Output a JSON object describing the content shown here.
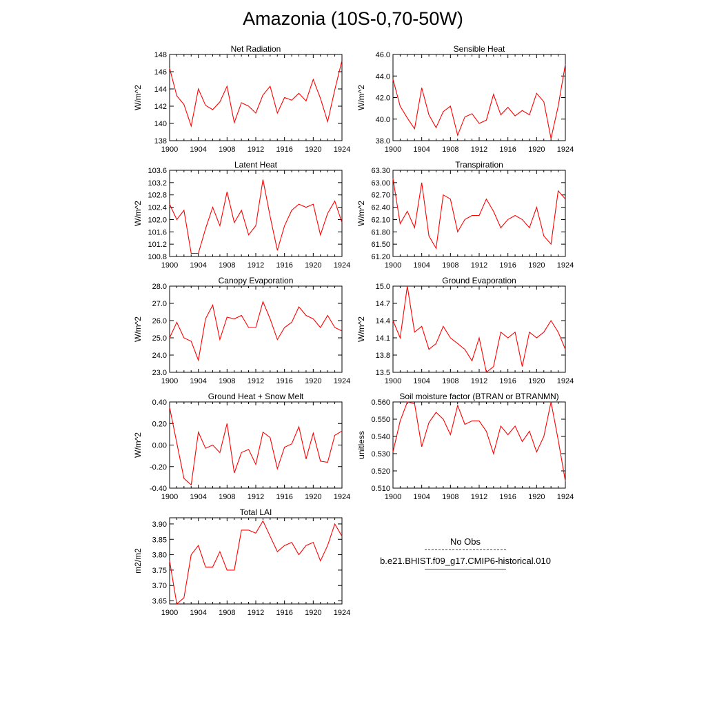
{
  "title": "Amazonia (10S-0,70-50W)",
  "line_color": "#ff0000",
  "legend": {
    "entries": [
      {
        "label": "No Obs",
        "style": "dashed",
        "color": "#3a3a9a"
      },
      {
        "label": "b.e21.BHIST.f09_g17.CMIP6-historical.010",
        "style": "solid",
        "color": "#ff0000"
      }
    ]
  },
  "chart_data": [
    {
      "type": "line",
      "title": "Net Radiation",
      "ylabel": "W/m^2",
      "xlim": [
        1900,
        1924
      ],
      "xticks": [
        1900,
        1904,
        1908,
        1912,
        1916,
        1920,
        1924
      ],
      "ylim": [
        138,
        148
      ],
      "yticks": [
        "138",
        "140",
        "142",
        "144",
        "146",
        "148"
      ],
      "x": [
        1900,
        1901,
        1902,
        1903,
        1904,
        1905,
        1906,
        1907,
        1908,
        1909,
        1910,
        1911,
        1912,
        1913,
        1914,
        1915,
        1916,
        1917,
        1918,
        1919,
        1920,
        1921,
        1922,
        1923,
        1924
      ],
      "y": [
        146.4,
        143.2,
        142.2,
        139.7,
        144.0,
        142.1,
        141.6,
        142.5,
        144.3,
        140.1,
        142.4,
        142.0,
        141.2,
        143.3,
        144.3,
        141.2,
        143.0,
        142.7,
        143.5,
        142.6,
        145.1,
        142.9,
        140.2,
        143.9,
        147.3
      ]
    },
    {
      "type": "line",
      "title": "Sensible Heat",
      "ylabel": "W/m^2",
      "xlim": [
        1900,
        1924
      ],
      "xticks": [
        1900,
        1904,
        1908,
        1912,
        1916,
        1920,
        1924
      ],
      "ylim": [
        38,
        46
      ],
      "yticks": [
        "38.0",
        "40.0",
        "42.0",
        "44.0",
        "46.0"
      ],
      "x": [
        1900,
        1901,
        1902,
        1903,
        1904,
        1905,
        1906,
        1907,
        1908,
        1909,
        1910,
        1911,
        1912,
        1913,
        1914,
        1915,
        1916,
        1917,
        1918,
        1919,
        1920,
        1921,
        1922,
        1923,
        1924
      ],
      "y": [
        43.7,
        41.2,
        40.1,
        39.1,
        42.9,
        40.4,
        39.2,
        40.7,
        41.2,
        38.5,
        40.2,
        40.5,
        39.6,
        39.9,
        42.3,
        40.4,
        41.1,
        40.3,
        40.8,
        40.4,
        42.4,
        41.6,
        38.2,
        41.2,
        45.1
      ]
    },
    {
      "type": "line",
      "title": "Latent Heat",
      "ylabel": "W/m^2",
      "xlim": [
        1900,
        1924
      ],
      "xticks": [
        1900,
        1904,
        1908,
        1912,
        1916,
        1920,
        1924
      ],
      "ylim": [
        100.8,
        103.6
      ],
      "yticks": [
        "100.8",
        "101.2",
        "101.6",
        "102.0",
        "102.4",
        "102.8",
        "103.2",
        "103.6"
      ],
      "x": [
        1900,
        1901,
        1902,
        1903,
        1904,
        1905,
        1906,
        1907,
        1908,
        1909,
        1910,
        1911,
        1912,
        1913,
        1914,
        1915,
        1916,
        1917,
        1918,
        1919,
        1920,
        1921,
        1922,
        1923,
        1924
      ],
      "y": [
        102.5,
        102.0,
        102.3,
        100.9,
        100.9,
        101.7,
        102.4,
        101.8,
        102.9,
        101.9,
        102.3,
        101.5,
        101.8,
        103.3,
        102.1,
        101.0,
        101.8,
        102.3,
        102.5,
        102.4,
        102.5,
        101.5,
        102.2,
        102.6,
        101.9
      ]
    },
    {
      "type": "line",
      "title": "Transpiration",
      "ylabel": "W/m^2",
      "xlim": [
        1900,
        1924
      ],
      "xticks": [
        1900,
        1904,
        1908,
        1912,
        1916,
        1920,
        1924
      ],
      "ylim": [
        61.2,
        63.3
      ],
      "yticks": [
        "61.20",
        "61.50",
        "61.80",
        "62.10",
        "62.40",
        "62.70",
        "63.00",
        "63.30"
      ],
      "x": [
        1900,
        1901,
        1902,
        1903,
        1904,
        1905,
        1906,
        1907,
        1908,
        1909,
        1910,
        1911,
        1912,
        1913,
        1914,
        1915,
        1916,
        1917,
        1918,
        1919,
        1920,
        1921,
        1922,
        1923,
        1924
      ],
      "y": [
        63.1,
        62.0,
        62.3,
        61.9,
        63.0,
        61.7,
        61.4,
        62.7,
        62.6,
        61.8,
        62.1,
        62.2,
        62.2,
        62.6,
        62.3,
        61.9,
        62.1,
        62.2,
        62.1,
        61.9,
        62.4,
        61.7,
        61.5,
        62.8,
        62.6
      ]
    },
    {
      "type": "line",
      "title": "Canopy Evaporation",
      "ylabel": "W/m^2",
      "xlim": [
        1900,
        1924
      ],
      "xticks": [
        1900,
        1904,
        1908,
        1912,
        1916,
        1920,
        1924
      ],
      "ylim": [
        23,
        28
      ],
      "yticks": [
        "23.0",
        "24.0",
        "25.0",
        "26.0",
        "27.0",
        "28.0"
      ],
      "x": [
        1900,
        1901,
        1902,
        1903,
        1904,
        1905,
        1906,
        1907,
        1908,
        1909,
        1910,
        1911,
        1912,
        1913,
        1914,
        1915,
        1916,
        1917,
        1918,
        1919,
        1920,
        1921,
        1922,
        1923,
        1924
      ],
      "y": [
        25.0,
        25.9,
        25.0,
        24.8,
        23.7,
        26.1,
        26.9,
        24.9,
        26.2,
        26.1,
        26.3,
        25.6,
        25.6,
        27.1,
        26.1,
        24.9,
        25.6,
        25.9,
        26.8,
        26.3,
        26.1,
        25.6,
        26.3,
        25.6,
        25.4
      ]
    },
    {
      "type": "line",
      "title": "Ground Evaporation",
      "ylabel": "W/m^2",
      "xlim": [
        1900,
        1924
      ],
      "xticks": [
        1900,
        1904,
        1908,
        1912,
        1916,
        1920,
        1924
      ],
      "ylim": [
        13.5,
        15.0
      ],
      "yticks": [
        "13.5",
        "13.8",
        "14.1",
        "14.4",
        "14.7",
        "15.0"
      ],
      "x": [
        1900,
        1901,
        1902,
        1903,
        1904,
        1905,
        1906,
        1907,
        1908,
        1909,
        1910,
        1911,
        1912,
        1913,
        1914,
        1915,
        1916,
        1917,
        1918,
        1919,
        1920,
        1921,
        1922,
        1923,
        1924
      ],
      "y": [
        14.4,
        14.1,
        15.0,
        14.2,
        14.3,
        13.9,
        14.0,
        14.3,
        14.1,
        14.0,
        13.9,
        13.7,
        14.1,
        13.5,
        13.6,
        14.2,
        14.1,
        14.2,
        13.6,
        14.2,
        14.1,
        14.2,
        14.4,
        14.2,
        13.9
      ]
    },
    {
      "type": "line",
      "title": "Ground Heat + Snow Melt",
      "ylabel": "W/m^2",
      "xlim": [
        1900,
        1924
      ],
      "xticks": [
        1900,
        1904,
        1908,
        1912,
        1916,
        1920,
        1924
      ],
      "ylim": [
        -0.4,
        0.4
      ],
      "yticks": [
        "-0.40",
        "-0.20",
        "0.00",
        "0.20",
        "0.40"
      ],
      "x": [
        1900,
        1901,
        1902,
        1903,
        1904,
        1905,
        1906,
        1907,
        1908,
        1909,
        1910,
        1911,
        1912,
        1913,
        1914,
        1915,
        1916,
        1917,
        1918,
        1919,
        1920,
        1921,
        1922,
        1923,
        1924
      ],
      "y": [
        0.35,
        0.02,
        -0.31,
        -0.37,
        0.12,
        -0.03,
        0.0,
        -0.07,
        0.2,
        -0.26,
        -0.07,
        -0.04,
        -0.18,
        0.12,
        0.07,
        -0.22,
        -0.02,
        0.01,
        0.17,
        -0.13,
        0.11,
        -0.15,
        -0.16,
        0.09,
        0.13
      ]
    },
    {
      "type": "line",
      "title": "Soil moisture factor (BTRAN or BTRANMN)",
      "ylabel": "unitless",
      "xlim": [
        1900,
        1924
      ],
      "xticks": [
        1900,
        1904,
        1908,
        1912,
        1916,
        1920,
        1924
      ],
      "ylim": [
        0.51,
        0.56
      ],
      "yticks": [
        "0.510",
        "0.520",
        "0.530",
        "0.540",
        "0.550",
        "0.560"
      ],
      "x": [
        1900,
        1901,
        1902,
        1903,
        1904,
        1905,
        1906,
        1907,
        1908,
        1909,
        1910,
        1911,
        1912,
        1913,
        1914,
        1915,
        1916,
        1917,
        1918,
        1919,
        1920,
        1921,
        1922,
        1923,
        1924
      ],
      "y": [
        0.531,
        0.549,
        0.56,
        0.559,
        0.534,
        0.548,
        0.554,
        0.55,
        0.541,
        0.558,
        0.547,
        0.549,
        0.549,
        0.543,
        0.53,
        0.546,
        0.541,
        0.546,
        0.537,
        0.543,
        0.531,
        0.54,
        0.56,
        0.538,
        0.514
      ]
    },
    {
      "type": "line",
      "title": "Total LAI",
      "ylabel": "m2/m2",
      "xlim": [
        1900,
        1924
      ],
      "xticks": [
        1900,
        1904,
        1908,
        1912,
        1916,
        1920,
        1924
      ],
      "ylim": [
        3.64,
        3.92
      ],
      "yticks": [
        "3.65",
        "3.70",
        "3.75",
        "3.80",
        "3.85",
        "3.90"
      ],
      "x": [
        1900,
        1901,
        1902,
        1903,
        1904,
        1905,
        1906,
        1907,
        1908,
        1909,
        1910,
        1911,
        1912,
        1913,
        1914,
        1915,
        1916,
        1917,
        1918,
        1919,
        1920,
        1921,
        1922,
        1923,
        1924
      ],
      "y": [
        3.78,
        3.64,
        3.66,
        3.8,
        3.83,
        3.76,
        3.76,
        3.81,
        3.75,
        3.75,
        3.88,
        3.88,
        3.87,
        3.91,
        3.86,
        3.81,
        3.83,
        3.84,
        3.8,
        3.83,
        3.84,
        3.78,
        3.83,
        3.9,
        3.86
      ]
    }
  ]
}
